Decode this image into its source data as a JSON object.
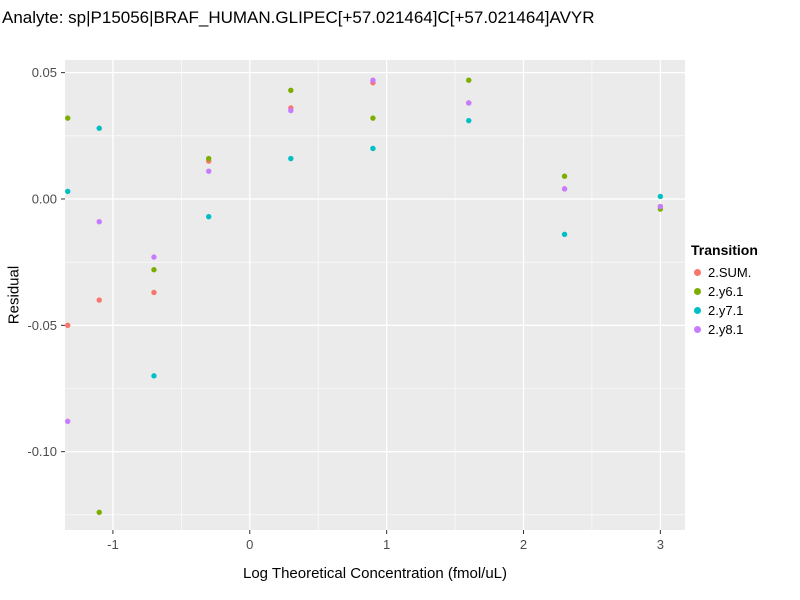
{
  "chart_data": {
    "type": "scatter",
    "title": "Analyte: sp|P15056|BRAF_HUMAN.GLIPEC[+57.021464]C[+57.021464]AVYR",
    "xlabel": "Log Theoretical Concentration (fmol/uL)",
    "ylabel": "Residual",
    "legend_title": "Transition",
    "xlim": [
      -1.35,
      3.18
    ],
    "ylim": [
      -0.131,
      0.055
    ],
    "x_major": [
      -1,
      0,
      1,
      2,
      3
    ],
    "x_minor": [
      -0.5,
      0.5,
      1.5,
      2.5
    ],
    "y_major": [
      0.05,
      0.0,
      -0.05,
      -0.1
    ],
    "y_minor": [
      0.025,
      -0.025,
      -0.075,
      -0.125
    ],
    "x_tick_labels": [
      "-1",
      "0",
      "1",
      "2",
      "3"
    ],
    "y_tick_labels": [
      "0.05",
      "0.00",
      "-0.05",
      "-0.10"
    ],
    "colors": {
      "panel_bg": "#EBEBEB",
      "gridline": "#FFFFFF",
      "tick_text": "#4D4D4D",
      "tick_mark": "#333333"
    },
    "series": [
      {
        "name": "2.SUM.",
        "color": "#F8766D",
        "points": [
          [
            -1.33,
            -0.05
          ],
          [
            -1.1,
            -0.04
          ],
          [
            -0.7,
            -0.037
          ],
          [
            -0.3,
            0.015
          ],
          [
            0.3,
            0.036
          ],
          [
            0.9,
            0.046
          ],
          [
            1.6,
            0.038
          ],
          [
            2.3,
            0.004
          ],
          [
            3.0,
            -0.003
          ]
        ]
      },
      {
        "name": "2.y6.1",
        "color": "#7CAE00",
        "points": [
          [
            -1.33,
            0.032
          ],
          [
            -1.1,
            -0.124
          ],
          [
            -0.7,
            -0.028
          ],
          [
            -0.3,
            0.016
          ],
          [
            0.3,
            0.043
          ],
          [
            0.9,
            0.032
          ],
          [
            1.6,
            0.047
          ],
          [
            2.3,
            0.009
          ],
          [
            3.0,
            -0.004
          ]
        ]
      },
      {
        "name": "2.y7.1",
        "color": "#00BFC4",
        "points": [
          [
            -1.33,
            0.003
          ],
          [
            -1.1,
            0.028
          ],
          [
            -0.7,
            -0.07
          ],
          [
            -0.3,
            -0.007
          ],
          [
            0.3,
            0.016
          ],
          [
            0.9,
            0.02
          ],
          [
            1.6,
            0.031
          ],
          [
            2.3,
            -0.014
          ],
          [
            3.0,
            0.001
          ]
        ]
      },
      {
        "name": "2.y8.1",
        "color": "#C77CFF",
        "points": [
          [
            -1.33,
            -0.088
          ],
          [
            -1.1,
            -0.009
          ],
          [
            -0.7,
            -0.023
          ],
          [
            -0.3,
            0.011
          ],
          [
            0.3,
            0.035
          ],
          [
            0.9,
            0.047
          ],
          [
            1.6,
            0.038
          ],
          [
            2.3,
            0.004
          ],
          [
            3.0,
            -0.003
          ]
        ]
      }
    ]
  }
}
